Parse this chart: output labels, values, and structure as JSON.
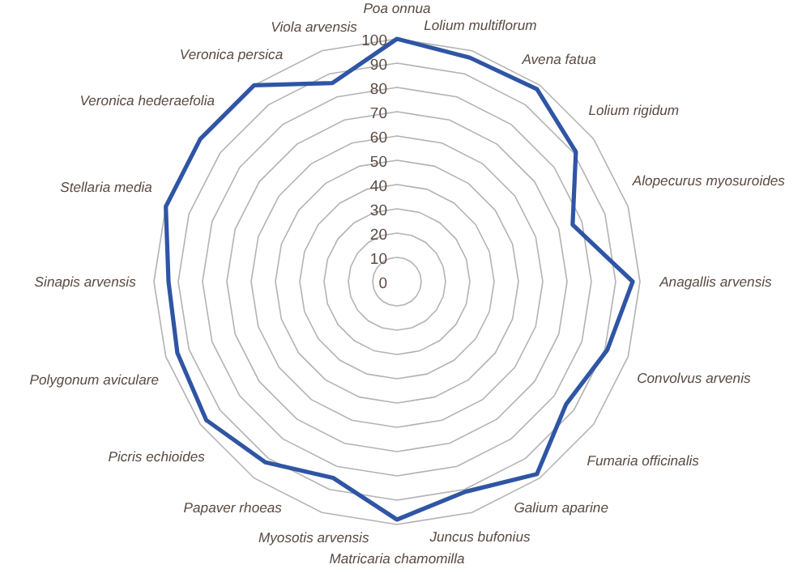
{
  "chart_data": {
    "type": "radar",
    "categories": [
      "Poa onnua",
      "Lolium multiflorum",
      "Avena fatua",
      "Lolium rigidum",
      "Alopecurus myosuroides",
      "Anagallis arvensis",
      "Convolvus arvenis",
      "Fumaria officinalis",
      "Galium aparine",
      "Juncus bufonius",
      "Matricaria chamomilla",
      "Myosotis arvensis",
      "Papaver rhoeas",
      "Picris echioides",
      "Polygonum aviculare",
      "Sinapis arvensis",
      "Stellaria media",
      "Veronica hederaefolia",
      "Veronica persica",
      "Viola arvensis"
    ],
    "series": [
      {
        "color": "#2f55a4",
        "values": [
          100,
          97,
          98,
          91,
          76,
          97,
          91,
          86,
          98,
          91,
          98,
          85,
          92,
          97,
          95,
          94,
          100,
          100,
          100,
          86
        ]
      }
    ],
    "ylim": [
      0,
      100
    ],
    "yticks": [
      0,
      10,
      20,
      30,
      40,
      50,
      60,
      70,
      80,
      90,
      100
    ],
    "grid": true,
    "marker": "none"
  }
}
